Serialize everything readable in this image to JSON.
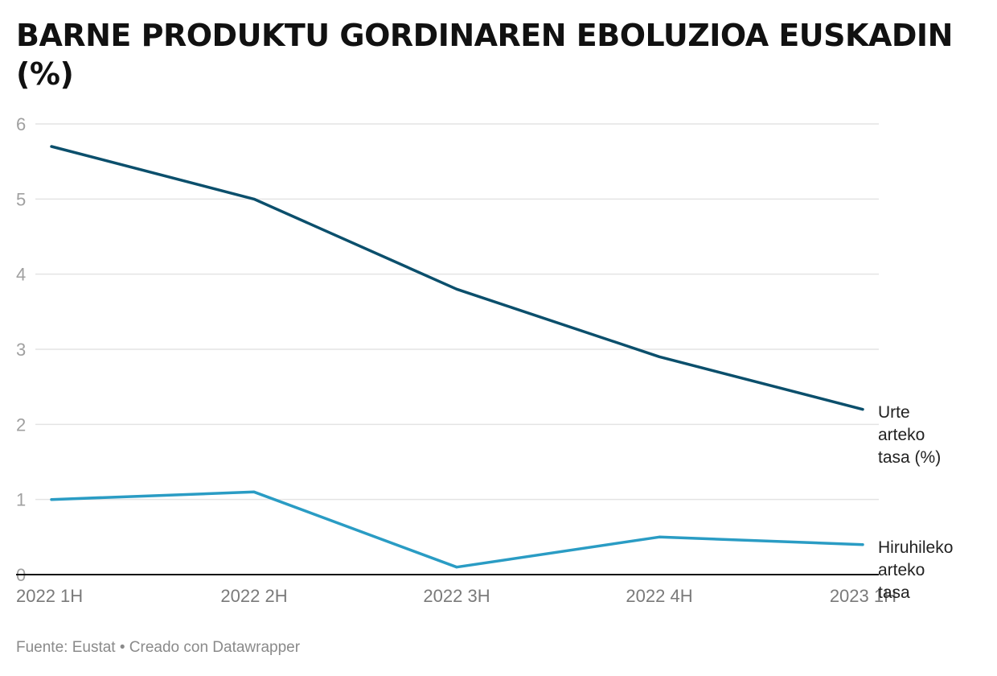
{
  "title": "BARNE PRODUKTU GORDINAREN EBOLUZIOA EUSKADIN (%)",
  "footer": "Fuente: Eustat • Creado con Datawrapper",
  "colors": {
    "urte": "#0b4f6c",
    "hiru": "#2a9cc4",
    "grid": "#e4e4e4",
    "baseline": "#111111"
  },
  "chart_data": {
    "type": "line",
    "title": "BARNE PRODUKTU GORDINAREN EBOLUZIOA EUSKADIN (%)",
    "xlabel": "",
    "ylabel": "",
    "ylim": [
      0,
      6
    ],
    "yticks": [
      "0",
      "1",
      "2",
      "3",
      "4",
      "5",
      "6"
    ],
    "grid": true,
    "legend_position": "inline-right",
    "categories": [
      "2022 1H",
      "2022 2H",
      "2022 3H",
      "2022 4H",
      "2023 1H"
    ],
    "series": [
      {
        "name": "Urte arteko tasa (%)",
        "label_lines": [
          "Urte",
          "arteko",
          "tasa (%)"
        ],
        "color": "#0b4f6c",
        "values": [
          5.7,
          5.0,
          3.8,
          2.9,
          2.2
        ]
      },
      {
        "name": "Hiruhileko arteko tasa",
        "label_lines": [
          "Hiruhileko",
          "arteko",
          "tasa"
        ],
        "color": "#2a9cc4",
        "values": [
          1.0,
          1.1,
          0.1,
          0.5,
          0.4
        ]
      }
    ]
  }
}
